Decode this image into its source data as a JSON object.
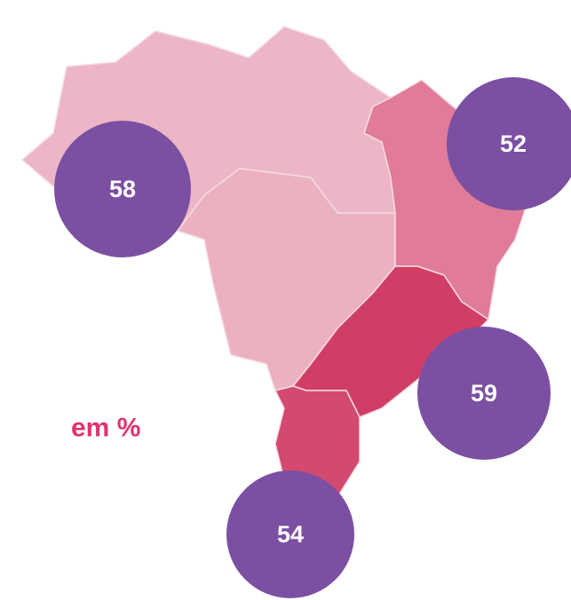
{
  "unit_label": "em %",
  "regions": [
    {
      "value": 58
    },
    {
      "value": 52
    },
    {
      "value": 59
    },
    {
      "value": 54
    }
  ]
}
